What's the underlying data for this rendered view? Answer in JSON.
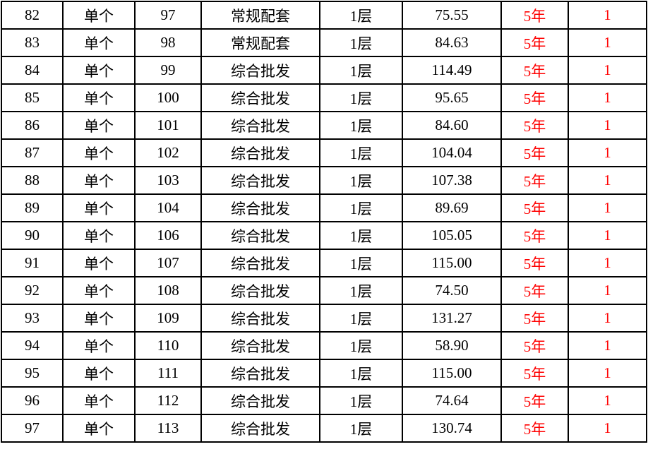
{
  "colors": {
    "text": "#000000",
    "highlight": "#ff0000",
    "border": "#000000"
  },
  "rows": [
    {
      "no": "82",
      "type": "单个",
      "unit": "97",
      "use": "常规配套",
      "floor": "1层",
      "area": "75.55",
      "term": "5年",
      "qty": "1"
    },
    {
      "no": "83",
      "type": "单个",
      "unit": "98",
      "use": "常规配套",
      "floor": "1层",
      "area": "84.63",
      "term": "5年",
      "qty": "1"
    },
    {
      "no": "84",
      "type": "单个",
      "unit": "99",
      "use": "综合批发",
      "floor": "1层",
      "area": "114.49",
      "term": "5年",
      "qty": "1"
    },
    {
      "no": "85",
      "type": "单个",
      "unit": "100",
      "use": "综合批发",
      "floor": "1层",
      "area": "95.65",
      "term": "5年",
      "qty": "1"
    },
    {
      "no": "86",
      "type": "单个",
      "unit": "101",
      "use": "综合批发",
      "floor": "1层",
      "area": "84.60",
      "term": "5年",
      "qty": "1"
    },
    {
      "no": "87",
      "type": "单个",
      "unit": "102",
      "use": "综合批发",
      "floor": "1层",
      "area": "104.04",
      "term": "5年",
      "qty": "1"
    },
    {
      "no": "88",
      "type": "单个",
      "unit": "103",
      "use": "综合批发",
      "floor": "1层",
      "area": "107.38",
      "term": "5年",
      "qty": "1"
    },
    {
      "no": "89",
      "type": "单个",
      "unit": "104",
      "use": "综合批发",
      "floor": "1层",
      "area": "89.69",
      "term": "5年",
      "qty": "1"
    },
    {
      "no": "90",
      "type": "单个",
      "unit": "106",
      "use": "综合批发",
      "floor": "1层",
      "area": "105.05",
      "term": "5年",
      "qty": "1"
    },
    {
      "no": "91",
      "type": "单个",
      "unit": "107",
      "use": "综合批发",
      "floor": "1层",
      "area": "115.00",
      "term": "5年",
      "qty": "1"
    },
    {
      "no": "92",
      "type": "单个",
      "unit": "108",
      "use": "综合批发",
      "floor": "1层",
      "area": "74.50",
      "term": "5年",
      "qty": "1"
    },
    {
      "no": "93",
      "type": "单个",
      "unit": "109",
      "use": "综合批发",
      "floor": "1层",
      "area": "131.27",
      "term": "5年",
      "qty": "1"
    },
    {
      "no": "94",
      "type": "单个",
      "unit": "110",
      "use": "综合批发",
      "floor": "1层",
      "area": "58.90",
      "term": "5年",
      "qty": "1"
    },
    {
      "no": "95",
      "type": "单个",
      "unit": "111",
      "use": "综合批发",
      "floor": "1层",
      "area": "115.00",
      "term": "5年",
      "qty": "1"
    },
    {
      "no": "96",
      "type": "单个",
      "unit": "112",
      "use": "综合批发",
      "floor": "1层",
      "area": "74.64",
      "term": "5年",
      "qty": "1"
    },
    {
      "no": "97",
      "type": "单个",
      "unit": "113",
      "use": "综合批发",
      "floor": "1层",
      "area": "130.74",
      "term": "5年",
      "qty": "1"
    }
  ]
}
